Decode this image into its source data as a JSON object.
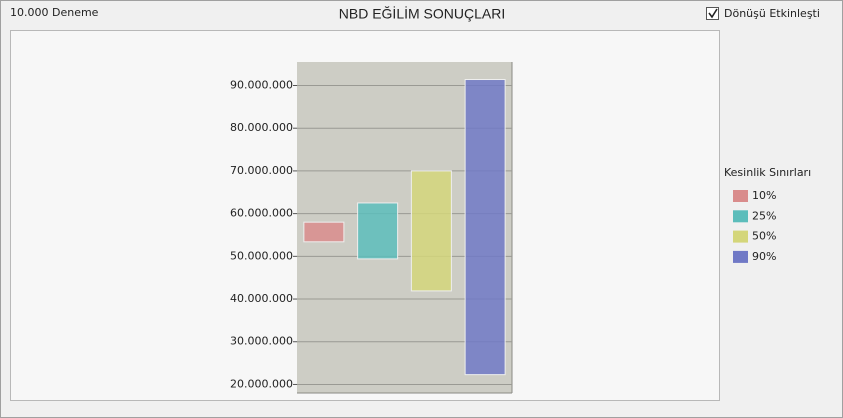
{
  "header": {
    "trials": "10.000 Deneme",
    "checkbox_label": "Dönüşü Etkinleşti",
    "checkbox_checked": true
  },
  "chart_data": {
    "type": "floating_bar",
    "title": "NBD EĞİLİM SONUÇLARI",
    "legend_title": "Kesinlik Sınırları",
    "categories": [
      "10%",
      "25%",
      "50%",
      "90%"
    ],
    "low": [
      53400000,
      49400000,
      41900000,
      22300000
    ],
    "high": [
      58000000,
      62500000,
      70000000,
      91400000
    ],
    "colors": [
      "#d98c8c",
      "#5cbdbb",
      "#d4d67a",
      "#7079c6"
    ],
    "ylim": [
      18000000,
      95500000
    ],
    "yticks": [
      {
        "value": 20000000,
        "label": "20.000.000"
      },
      {
        "value": 30000000,
        "label": "30.000.000"
      },
      {
        "value": 40000000,
        "label": "40.000.000"
      },
      {
        "value": 50000000,
        "label": "50.000.000"
      },
      {
        "value": 60000000,
        "label": "60.000.000"
      },
      {
        "value": 70000000,
        "label": "70.000.000"
      },
      {
        "value": 80000000,
        "label": "80.000.000"
      },
      {
        "value": 90000000,
        "label": "90.000.000"
      }
    ],
    "grid": true,
    "legend": "right"
  }
}
